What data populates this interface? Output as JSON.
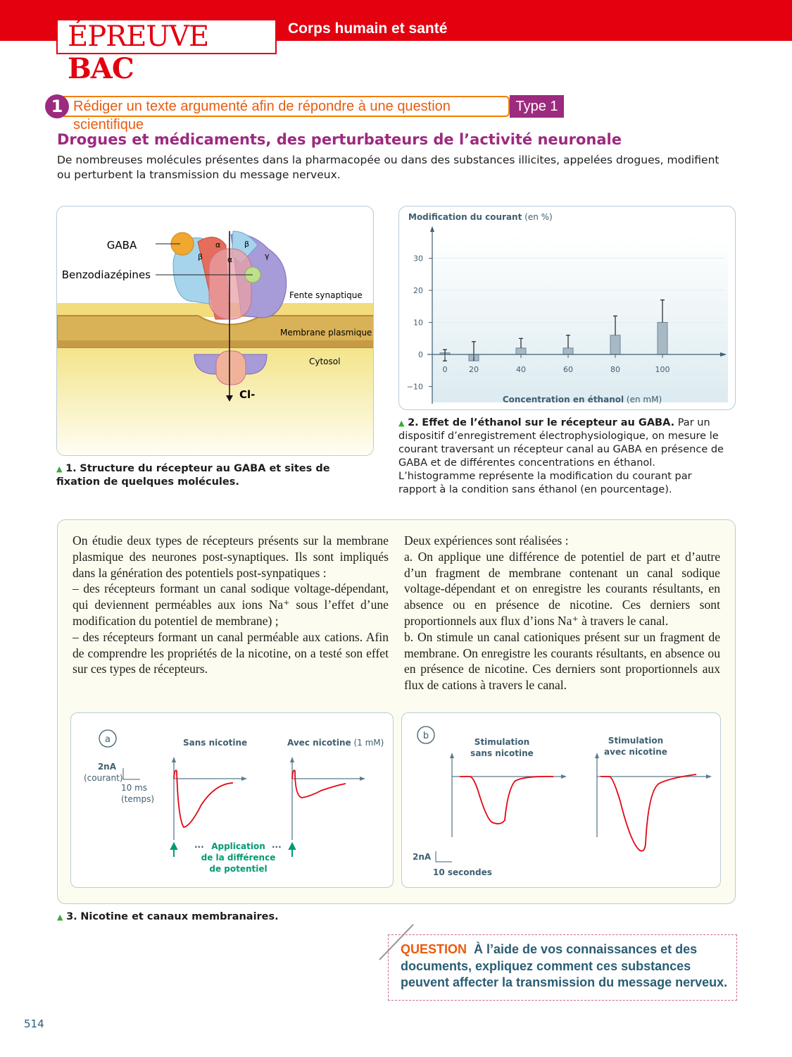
{
  "header": {
    "bac_light": "ÉPREUVE",
    "bac_bold": "BAC",
    "topic": "Corps humain et santé"
  },
  "exercise": {
    "number": "1",
    "instruction": "Rédiger un texte argumenté afin de répondre à une question scientifique",
    "type": "Type 1"
  },
  "title": "Drogues et médicaments, des perturbateurs de l’activité neuronale",
  "intro": "De nombreuses molécules présentes dans la pharmacopée ou dans des substances illicites, appelées drogues, modifient ou perturbent la transmission du message nerveux.",
  "doc1": {
    "labels": {
      "gaba": "GABA",
      "benzo": "Benzodiazépines",
      "fente": "Fente synaptique",
      "membrane": "Membrane plasmique",
      "cytosol": "Cytosol",
      "ion": "Cl-",
      "alpha": "α",
      "beta": "β",
      "gamma": "γ"
    },
    "caption_num": "1.",
    "caption": "Structure du récepteur au GABA et sites de fixation de quelques molécules."
  },
  "doc2": {
    "caption_num": "2.",
    "caption_bold": "Effet de l’éthanol sur le récepteur au GABA.",
    "caption": " Par un dispositif d’enregistrement électrophysiologique, on mesure le courant traversant un récepteur canal au GABA en présence de GABA et de différentes concentrations en éthanol. L’histogramme représente la modification du courant par rapport à la condition sans éthanol (en pourcentage)."
  },
  "chart_data": {
    "type": "bar",
    "ylabel_bold": "Modification du courant",
    "ylabel_unit": "(en %)",
    "xlabel_bold": "Concentration en éthanol",
    "xlabel_unit": "(en mM)",
    "categories": [
      "0",
      "20",
      "40",
      "60",
      "80",
      "100"
    ],
    "values": [
      0.5,
      -2,
      2,
      2,
      6,
      10
    ],
    "error_high": [
      1.5,
      4,
      5,
      6,
      12,
      17
    ],
    "error_low": [
      -2,
      null,
      null,
      null,
      null,
      null
    ],
    "yticks": [
      "30",
      "20",
      "10",
      "0",
      "−10"
    ],
    "ylim": [
      -15,
      40
    ],
    "grid": true,
    "bar_color": "#a7b9c4"
  },
  "doc3": {
    "left_text": [
      "On étudie deux types de récepteurs présents sur la membrane plasmique des neurones post-synaptiques. Ils sont impliqués dans la génération des potentiels post-synpatiques :",
      "– des récepteurs formant un canal sodique voltage-dépendant, qui deviennent perméables aux ions Na⁺ sous l’effet d’une modification du potentiel de membrane) ;",
      "– des récepteurs formant un canal perméable aux cations. Afin de comprendre les propriétés de la nicotine, on a testé son effet sur ces types de récepteurs."
    ],
    "right_text": [
      "Deux expériences sont réalisées :",
      "a. On applique une différence de potentiel de part et d’autre d’un fragment de membrane contenant un canal sodique voltage-dépendant et on enregistre les courants résultants, en absence ou en présence de nicotine. Ces derniers sont proportionnels aux flux d’ions Na⁺ à travers le canal.",
      "b. On stimule un canal cationiques présent sur un fragment de membrane. On enregistre les courants résultants, en absence ou en présence de nicotine. Ces derniers sont proportionnels aux flux de cations à travers le canal."
    ],
    "panel_a": {
      "letter": "a",
      "scale_y": "2nA",
      "scale_y_unit": "(courant)",
      "scale_x": "10 ms",
      "scale_x_unit": "(temps)",
      "title1": "Sans nicotine",
      "title2_bold": "Avec nicotine",
      "title2_unit": "(1 mM)",
      "dots": "...",
      "application": [
        "Application",
        "de la différence",
        "de potentiel"
      ]
    },
    "panel_b": {
      "letter": "b",
      "title1": [
        "Stimulation",
        "sans nicotine"
      ],
      "title2": [
        "Stimulation",
        "avec nicotine"
      ],
      "scale_y": "2nA",
      "scale_x": "10 secondes"
    },
    "caption_num": "3.",
    "caption": "Nicotine et canaux membranaires."
  },
  "question": {
    "label": "QUESTION",
    "text": "À l’aide de vos connaissances et des documents, expliquez comment ces substances peuvent affecter la transmission du message nerveux."
  },
  "page_number": "514",
  "colors": {
    "red": "#e3000f",
    "purple": "#9c2a7f",
    "orange": "#ea5b0c",
    "teal": "#2a5d74",
    "green": "#009a74"
  }
}
